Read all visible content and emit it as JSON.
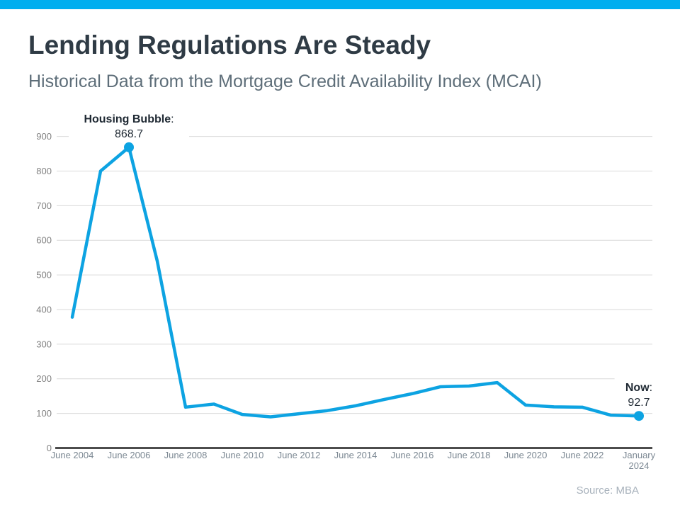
{
  "header": {
    "title": "Lending Regulations Are Steady",
    "subtitle": "Historical Data from the Mortgage Credit Availability Index (MCAI)"
  },
  "chart_data": {
    "type": "line",
    "title": "Lending Regulations Are Steady",
    "subtitle": "Historical Data from the Mortgage Credit Availability Index (MCAI)",
    "x": [
      "June 2004",
      "June 2005",
      "June 2006",
      "June 2007",
      "June 2008",
      "June 2009",
      "June 2010",
      "June 2011",
      "June 2012",
      "June 2013",
      "June 2014",
      "June 2015",
      "June 2016",
      "June 2017",
      "June 2018",
      "June 2019",
      "June 2020",
      "June 2021",
      "June 2022",
      "June 2023",
      "January 2024"
    ],
    "series": [
      {
        "name": "Mortgage Credit Availability Index",
        "values": [
          378,
          800,
          868.7,
          540,
          118,
          127,
          97,
          90,
          99,
          108,
          122,
          140,
          157,
          177,
          179,
          189,
          124,
          119,
          118,
          95,
          92.7
        ]
      }
    ],
    "x_tick_labels": [
      "June 2004",
      "June 2006",
      "June 2008",
      "June 2010",
      "June 2012",
      "June 2014",
      "June 2016",
      "June 2018",
      "June 2020",
      "June 2022",
      "January\n2024"
    ],
    "ylim": [
      0,
      900
    ],
    "y_tick_step": 100,
    "grid": true,
    "legend_position": "none",
    "annotations": [
      {
        "label": "Housing Bubble",
        "separator": ":",
        "value": "868.7",
        "x": "June 2006"
      },
      {
        "label": "Now",
        "separator": ":",
        "value": "92.7",
        "x": "January 2024"
      }
    ]
  },
  "footer": {
    "source": "Source: MBA"
  },
  "colors": {
    "accent_bar": "#00AEEF",
    "line": "#0DA3E2",
    "marker": "#0DA3E2",
    "title": "#2F3B45",
    "subtitle": "#5E6E79",
    "grid": "#DADADA",
    "axis": "#262626",
    "y_tick_text": "#808080",
    "x_tick_text": "#7C8893",
    "annotation_text": "#1F2933",
    "source_text": "#A8B2BC"
  }
}
